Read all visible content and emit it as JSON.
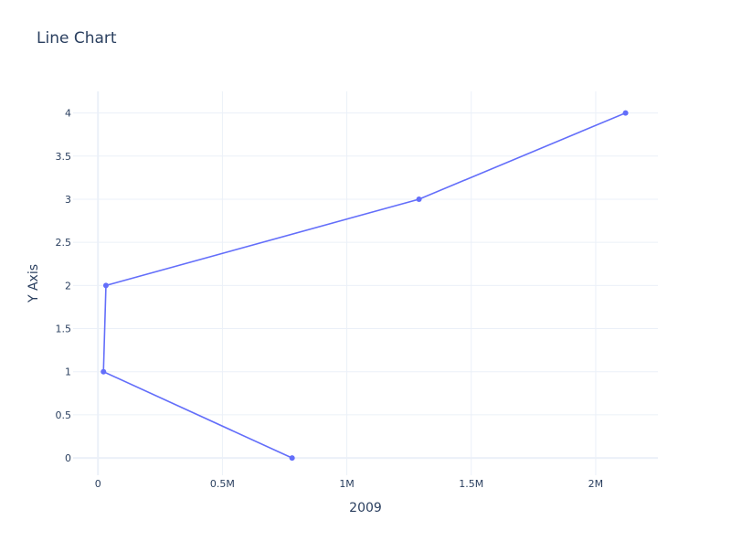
{
  "chart_data": {
    "type": "line",
    "title": "Line Chart",
    "xlabel": "2009",
    "ylabel": "Y Axis",
    "xlim": [
      -100000,
      2250000
    ],
    "ylim": [
      -0.2,
      4.25
    ],
    "x_ticks": [
      0,
      500000,
      1000000,
      1500000,
      2000000
    ],
    "x_tick_labels": [
      "0",
      "0.5M",
      "1M",
      "1.5M",
      "2M"
    ],
    "y_ticks": [
      0,
      0.5,
      1,
      1.5,
      2,
      2.5,
      3,
      3.5,
      4
    ],
    "y_tick_labels": [
      "0",
      "0.5",
      "1",
      "1.5",
      "2",
      "2.5",
      "3",
      "3.5",
      "4"
    ],
    "grid": true,
    "series": [
      {
        "x": [
          780000,
          22000,
          32000,
          1290000,
          2120000
        ],
        "y": [
          0,
          1,
          2,
          3,
          4
        ],
        "color": "#636efa"
      }
    ]
  },
  "colors": {
    "grid": "#ebf0f8",
    "zero_line": "#ebf0f8",
    "text": "#2a3f5f",
    "series": "#636efa"
  }
}
